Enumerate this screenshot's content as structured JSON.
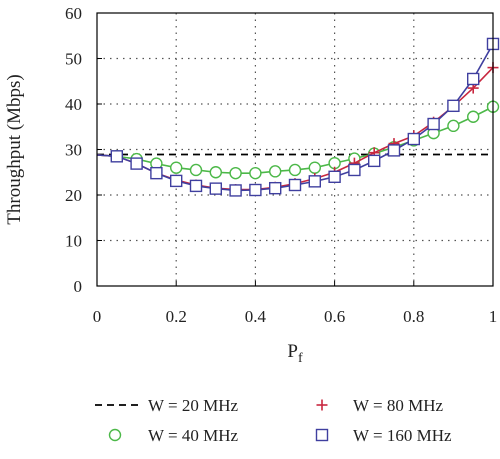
{
  "chart_data": {
    "type": "line",
    "xlabel": "P",
    "xlabel_sub": "f",
    "ylabel": "Throughput (Mbps)",
    "xlim": [
      0,
      1
    ],
    "ylim": [
      0,
      60
    ],
    "x_ticks": [
      0,
      0.2,
      0.4,
      0.6,
      0.8,
      1
    ],
    "x_tick_labels": [
      "0",
      "0.2",
      "0.4",
      "0.6",
      "0.8",
      "1"
    ],
    "y_ticks": [
      0,
      10,
      20,
      30,
      40,
      50,
      60
    ],
    "y_tick_labels": [
      "0",
      "10",
      "20",
      "30",
      "40",
      "50",
      "60"
    ],
    "grid": "dotted",
    "legend_position": "bottom",
    "series": [
      {
        "name": "W = 20 MHz",
        "color": "#000000",
        "style": "dashed",
        "marker": "none",
        "x": [
          0,
          1
        ],
        "y": [
          28.9,
          28.9
        ]
      },
      {
        "name": "W = 40 MHz",
        "color": "#4cb848",
        "style": "solid",
        "marker": "circle",
        "x": [
          0.05,
          0.1,
          0.15,
          0.2,
          0.25,
          0.3,
          0.35,
          0.4,
          0.45,
          0.5,
          0.55,
          0.6,
          0.65,
          0.7,
          0.75,
          0.8,
          0.85,
          0.9,
          0.95,
          1.0
        ],
        "y": [
          28.5,
          27.9,
          26.9,
          26.0,
          25.5,
          25.0,
          24.8,
          24.8,
          25.2,
          25.5,
          26.0,
          27.0,
          28.0,
          29.1,
          30.5,
          32.0,
          33.6,
          35.2,
          37.2,
          39.4
        ]
      },
      {
        "name": "W = 80 MHz",
        "color": "#c8273f",
        "style": "solid",
        "marker": "plus",
        "x": [
          0.05,
          0.1,
          0.15,
          0.2,
          0.25,
          0.3,
          0.35,
          0.4,
          0.45,
          0.5,
          0.55,
          0.6,
          0.65,
          0.7,
          0.75,
          0.8,
          0.85,
          0.9,
          0.95,
          1.0
        ],
        "y": [
          28.5,
          26.9,
          24.8,
          23.3,
          22.2,
          21.5,
          21.2,
          21.2,
          21.7,
          22.5,
          23.6,
          25.0,
          27.0,
          29.3,
          31.3,
          33.0,
          36.0,
          39.5,
          43.5,
          48.0
        ]
      },
      {
        "name": "W = 160 MHz",
        "color": "#3f3f9f",
        "style": "solid",
        "marker": "square",
        "x": [
          0.05,
          0.1,
          0.15,
          0.2,
          0.25,
          0.3,
          0.35,
          0.4,
          0.45,
          0.5,
          0.55,
          0.6,
          0.65,
          0.7,
          0.75,
          0.8,
          0.85,
          0.9,
          0.95,
          1.0
        ],
        "y": [
          28.5,
          26.9,
          24.8,
          23.1,
          22.0,
          21.4,
          21.0,
          21.1,
          21.5,
          22.2,
          23.0,
          24.0,
          25.5,
          27.5,
          29.8,
          32.3,
          35.6,
          39.6,
          45.5,
          53.2
        ]
      }
    ]
  }
}
